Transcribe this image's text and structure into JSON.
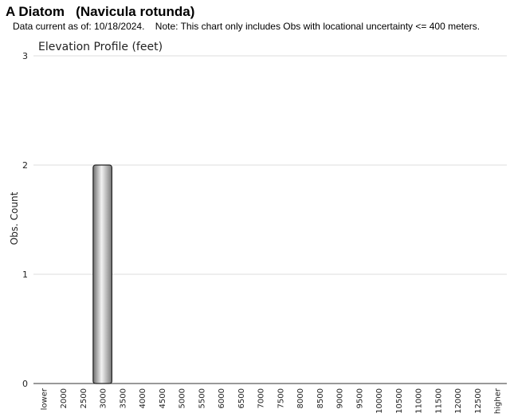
{
  "header": {
    "title": "A Diatom   (Navicula rotunda)",
    "note": "Data current as of: 10/18/2024.    Note: This chart only includes Obs with locational uncertainty <= 400 meters."
  },
  "chart_data": {
    "type": "bar",
    "title": "Elevation Profile (feet)",
    "xlabel": "",
    "ylabel": "Obs. Count",
    "ylim": [
      0,
      3
    ],
    "yticks": [
      0,
      1,
      2,
      3
    ],
    "grid": true,
    "categories": [
      "lower",
      "2000",
      "2500",
      "3000",
      "3500",
      "4000",
      "4500",
      "5000",
      "5500",
      "6000",
      "6500",
      "7000",
      "7500",
      "8000",
      "8500",
      "9000",
      "9500",
      "10000",
      "10500",
      "11000",
      "11500",
      "12000",
      "12500",
      "higher"
    ],
    "values": [
      0,
      0,
      0,
      2,
      0,
      0,
      0,
      0,
      0,
      0,
      0,
      0,
      0,
      0,
      0,
      0,
      0,
      0,
      0,
      0,
      0,
      0,
      0,
      0
    ],
    "bar_color": "#b0b0b0"
  }
}
